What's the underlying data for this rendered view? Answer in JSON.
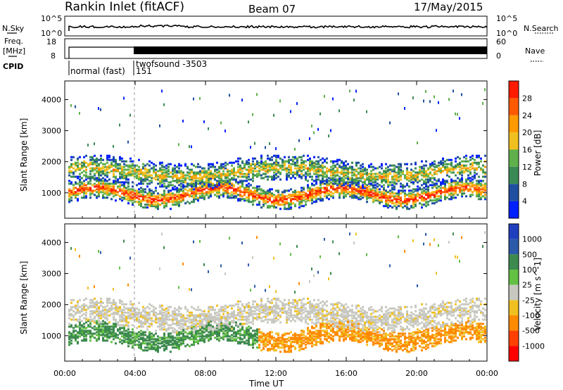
{
  "header": {
    "station": "Rankin Inlet (fitACF)",
    "beam": "Beam 07",
    "date": "17/May/2015"
  },
  "strip_panels": {
    "nsky_label": "N.Sky",
    "nsearch_label": "N.Search",
    "nsky_ticks": [
      "10^5",
      "10^0"
    ],
    "nsearch_ticks": [
      "10^5",
      "10^0"
    ],
    "freq_label": "Freq.",
    "freq_unit": "[MHz]",
    "freq_ticks": [
      "18",
      "8"
    ],
    "nave_label": "Nave",
    "nave_ticks": [
      "60",
      "0"
    ],
    "cpid_label": "CPID",
    "cpid_modes": [
      "normal (fast)",
      "151",
      "twofsound -3503"
    ]
  },
  "colors": {
    "power": [
      "#0020ff",
      "#1f4fa0",
      "#3a8a55",
      "#5fb04a",
      "#f0c020",
      "#ff9a00",
      "#ff5a00",
      "#ff1a00"
    ],
    "velocity": [
      "#1f3fbf",
      "#2a5aa8",
      "#3d8a4e",
      "#63c043",
      "#c8c8c0",
      "#f0c020",
      "#ff8a00",
      "#ff4000",
      "#ff0000"
    ]
  },
  "chart_data": [
    {
      "type": "heatmap",
      "name": "power",
      "ylabel": "Slant Range [km]",
      "xlim": [
        "00:00",
        "24:00"
      ],
      "ylim": [
        180,
        4600
      ],
      "y_ticks": [
        1000,
        2000,
        3000,
        4000
      ],
      "colorbar_label": "Power [dB]",
      "colorbar_ticks": [
        "4",
        "8",
        "12",
        "16",
        "20",
        "24",
        "28"
      ],
      "value_range": [
        0,
        30
      ]
    },
    {
      "type": "heatmap",
      "name": "velocity",
      "xlabel": "Time UT",
      "ylabel": "Slant Range [km]",
      "xlim": [
        "00:00",
        "24:00"
      ],
      "ylim": [
        180,
        4600
      ],
      "x_ticks": [
        "00:00",
        "04:00",
        "08:00",
        "12:00",
        "16:00",
        "20:00",
        "00:00"
      ],
      "y_ticks": [
        1000,
        2000,
        3000,
        4000
      ],
      "colorbar_label": "Velocity [m s^-1]",
      "colorbar_ticks": [
        "1000",
        "500",
        "100",
        "25",
        "-25",
        "-100",
        "-500",
        "-1000"
      ]
    }
  ]
}
